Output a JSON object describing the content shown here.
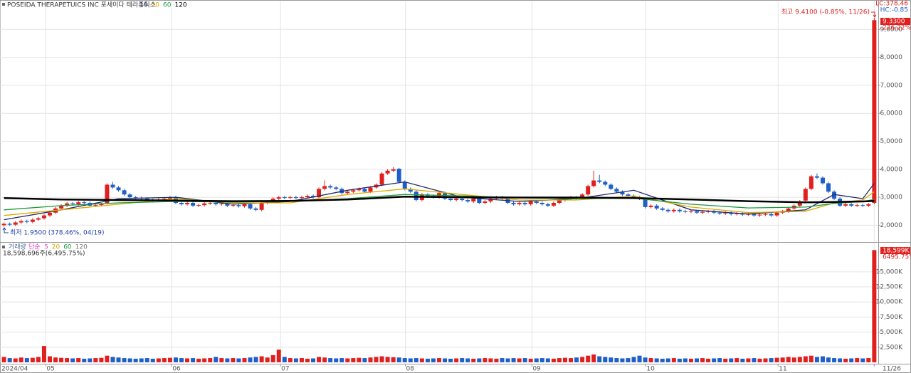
{
  "chart_data": [
    {
      "type": "candlestick",
      "title": "POSEIDA THERAPETUICS INC  포세이다 테라퓨틱스",
      "up_color": "#e0201f",
      "down_color": "#1f5fc8",
      "open": [
        2.0,
        2.05,
        2.02,
        2.1,
        2.15,
        2.12,
        2.2,
        2.25,
        2.35,
        2.45,
        2.6,
        2.7,
        2.78,
        2.75,
        2.82,
        2.8,
        2.7,
        2.72,
        2.8,
        3.45,
        3.35,
        3.25,
        3.1,
        3.0,
        2.98,
        2.95,
        2.9,
        2.88,
        2.92,
        2.95,
        3.0,
        2.8,
        2.75,
        2.8,
        2.7,
        2.72,
        2.78,
        2.8,
        2.75,
        2.78,
        2.7,
        2.72,
        2.68,
        2.75,
        2.6,
        2.55,
        2.8,
        2.85,
        2.95,
        3.0,
        2.98,
        3.0,
        2.98,
        3.0,
        3.05,
        3.0,
        3.3,
        3.4,
        3.35,
        3.3,
        3.15,
        3.2,
        3.25,
        3.3,
        3.2,
        3.35,
        3.45,
        3.85,
        3.95,
        4.02,
        3.55,
        3.3,
        3.2,
        2.9,
        3.1,
        3.05,
        3.0,
        3.15,
        2.95,
        2.9,
        2.95,
        2.9,
        2.85,
        2.95,
        2.8,
        2.85,
        2.95,
        3.0,
        2.95,
        2.8,
        2.75,
        2.8,
        2.75,
        2.85,
        2.8,
        2.75,
        2.7,
        2.8,
        2.9,
        2.95,
        3.0,
        2.95,
        3.1,
        3.4,
        3.6,
        3.55,
        3.45,
        3.3,
        3.2,
        3.1,
        3.05,
        3.0,
        2.95,
        2.65,
        2.7,
        2.6,
        2.55,
        2.5,
        2.55,
        2.5,
        2.48,
        2.5,
        2.45,
        2.48,
        2.5,
        2.45,
        2.42,
        2.45,
        2.4,
        2.42,
        2.38,
        2.4,
        2.35,
        2.38,
        2.4,
        2.35,
        2.45,
        2.5,
        2.6,
        2.7,
        2.88,
        3.3,
        3.75,
        3.7,
        3.5,
        3.2,
        2.95,
        2.7,
        2.75,
        2.7,
        2.72,
        2.7,
        2.8
      ],
      "high": [
        2.1,
        2.1,
        2.15,
        2.2,
        2.2,
        2.25,
        2.3,
        2.4,
        2.5,
        2.65,
        2.75,
        2.83,
        2.83,
        2.87,
        2.87,
        2.85,
        2.77,
        2.8,
        3.5,
        3.55,
        3.4,
        3.3,
        3.15,
        3.05,
        3.03,
        3.0,
        2.95,
        2.97,
        3.0,
        3.05,
        3.05,
        2.85,
        2.85,
        2.85,
        2.77,
        2.83,
        2.85,
        2.85,
        2.83,
        2.83,
        2.77,
        2.77,
        2.8,
        2.8,
        2.65,
        2.85,
        2.9,
        3.0,
        3.05,
        3.05,
        3.05,
        3.05,
        3.05,
        3.1,
        3.1,
        3.35,
        3.6,
        3.45,
        3.4,
        3.35,
        3.25,
        3.3,
        3.35,
        3.35,
        3.4,
        3.5,
        3.9,
        4.0,
        4.08,
        4.05,
        3.6,
        3.35,
        3.25,
        3.15,
        3.15,
        3.1,
        3.2,
        3.2,
        3.0,
        3.0,
        3.0,
        2.95,
        3.0,
        3.0,
        2.9,
        3.0,
        3.05,
        3.05,
        3.0,
        2.85,
        2.85,
        2.85,
        2.9,
        2.9,
        2.85,
        2.8,
        2.85,
        2.95,
        3.0,
        3.05,
        3.05,
        3.15,
        3.45,
        3.95,
        3.8,
        3.6,
        3.5,
        3.35,
        3.25,
        3.15,
        3.1,
        3.05,
        3.0,
        2.75,
        2.75,
        2.65,
        2.6,
        2.6,
        2.6,
        2.55,
        2.55,
        2.55,
        2.53,
        2.55,
        2.55,
        2.5,
        2.5,
        2.5,
        2.47,
        2.47,
        2.45,
        2.45,
        2.43,
        2.45,
        2.45,
        2.5,
        2.55,
        2.65,
        2.75,
        2.9,
        3.35,
        3.8,
        3.85,
        3.75,
        3.55,
        3.25,
        3.0,
        2.8,
        2.8,
        2.77,
        2.77,
        2.8,
        9.41
      ],
      "low": [
        1.95,
        1.97,
        1.97,
        2.05,
        2.07,
        2.07,
        2.15,
        2.2,
        2.3,
        2.4,
        2.55,
        2.65,
        2.7,
        2.7,
        2.75,
        2.65,
        2.65,
        2.67,
        2.75,
        3.3,
        3.2,
        3.05,
        2.95,
        2.93,
        2.9,
        2.85,
        2.83,
        2.83,
        2.87,
        2.9,
        2.75,
        2.7,
        2.7,
        2.65,
        2.65,
        2.67,
        2.73,
        2.7,
        2.7,
        2.65,
        2.65,
        2.63,
        2.63,
        2.55,
        2.5,
        2.5,
        2.75,
        2.8,
        2.9,
        2.93,
        2.93,
        2.93,
        2.93,
        2.95,
        2.95,
        2.95,
        3.25,
        3.3,
        3.25,
        3.1,
        3.1,
        3.15,
        3.2,
        3.15,
        3.15,
        3.3,
        3.4,
        3.8,
        3.9,
        3.5,
        3.25,
        3.15,
        2.85,
        2.85,
        3.0,
        2.95,
        2.95,
        2.9,
        2.85,
        2.85,
        2.85,
        2.8,
        2.8,
        2.75,
        2.75,
        2.8,
        2.9,
        2.9,
        2.75,
        2.7,
        2.7,
        2.7,
        2.7,
        2.75,
        2.7,
        2.65,
        2.65,
        2.75,
        2.85,
        2.9,
        2.9,
        2.9,
        3.05,
        3.35,
        3.5,
        3.4,
        3.25,
        3.15,
        3.05,
        3.0,
        2.95,
        2.9,
        2.6,
        2.6,
        2.55,
        2.5,
        2.45,
        2.45,
        2.45,
        2.43,
        2.43,
        2.4,
        2.4,
        2.43,
        2.4,
        2.37,
        2.37,
        2.35,
        2.35,
        2.33,
        2.33,
        2.3,
        2.3,
        2.33,
        2.3,
        2.3,
        2.4,
        2.45,
        2.55,
        2.65,
        2.83,
        3.25,
        3.65,
        3.45,
        3.15,
        2.9,
        2.65,
        2.65,
        2.65,
        2.65,
        2.65,
        2.65,
        2.75
      ],
      "close": [
        2.05,
        2.02,
        2.1,
        2.15,
        2.12,
        2.2,
        2.25,
        2.35,
        2.45,
        2.6,
        2.7,
        2.78,
        2.75,
        2.82,
        2.8,
        2.7,
        2.72,
        2.75,
        3.45,
        3.35,
        3.25,
        3.1,
        3.0,
        2.98,
        2.95,
        2.9,
        2.88,
        2.92,
        2.95,
        3.0,
        2.8,
        2.75,
        2.8,
        2.7,
        2.72,
        2.78,
        2.8,
        2.75,
        2.78,
        2.7,
        2.72,
        2.68,
        2.75,
        2.6,
        2.55,
        2.8,
        2.85,
        2.95,
        3.0,
        2.98,
        3.0,
        2.98,
        3.0,
        3.05,
        3.0,
        3.3,
        3.4,
        3.35,
        3.3,
        3.15,
        3.2,
        3.25,
        3.3,
        3.2,
        3.35,
        3.45,
        3.85,
        3.95,
        4.0,
        3.55,
        3.3,
        3.2,
        2.9,
        3.1,
        3.05,
        3.0,
        3.15,
        2.95,
        2.9,
        2.95,
        2.9,
        2.85,
        2.95,
        2.8,
        2.85,
        2.95,
        3.0,
        2.95,
        2.8,
        2.75,
        2.8,
        2.75,
        2.85,
        2.8,
        2.75,
        2.7,
        2.8,
        2.9,
        2.95,
        3.0,
        2.95,
        3.1,
        3.4,
        3.6,
        3.55,
        3.45,
        3.3,
        3.2,
        3.1,
        3.05,
        3.0,
        2.95,
        2.65,
        2.7,
        2.6,
        2.55,
        2.5,
        2.55,
        2.5,
        2.48,
        2.5,
        2.45,
        2.48,
        2.5,
        2.45,
        2.42,
        2.45,
        2.4,
        2.42,
        2.38,
        2.4,
        2.35,
        2.38,
        2.4,
        2.35,
        2.45,
        2.5,
        2.6,
        2.7,
        2.85,
        3.3,
        3.75,
        3.7,
        3.5,
        3.2,
        2.95,
        2.7,
        2.75,
        2.7,
        2.72,
        2.7,
        2.75,
        9.33
      ],
      "series": [
        {
          "name": "10",
          "color": "#1f2a6b",
          "x": [
            0,
            10,
            20,
            30,
            40,
            50,
            60,
            70,
            80,
            90,
            100,
            110,
            120,
            130,
            140,
            145,
            150,
            152
          ],
          "values": [
            2.2,
            2.55,
            2.95,
            3.0,
            2.75,
            2.85,
            3.25,
            3.55,
            3.0,
            2.85,
            2.95,
            3.25,
            2.55,
            2.4,
            2.55,
            3.1,
            2.95,
            3.5
          ]
        },
        {
          "name": "20",
          "color": "#e0a800",
          "x": [
            0,
            10,
            20,
            30,
            40,
            50,
            60,
            70,
            80,
            90,
            100,
            110,
            120,
            130,
            140,
            145,
            150,
            152
          ],
          "values": [
            2.35,
            2.55,
            2.75,
            2.95,
            2.8,
            2.8,
            3.1,
            3.3,
            3.1,
            2.9,
            2.9,
            3.05,
            2.65,
            2.45,
            2.5,
            2.8,
            2.9,
            3.2
          ]
        },
        {
          "name": "60",
          "color": "#1e9a3a",
          "x": [
            0,
            10,
            20,
            30,
            40,
            50,
            60,
            70,
            80,
            90,
            100,
            110,
            120,
            130,
            140,
            145,
            150,
            152
          ],
          "values": [
            2.55,
            2.7,
            2.8,
            2.85,
            2.83,
            2.85,
            2.95,
            3.1,
            3.05,
            2.98,
            2.95,
            2.97,
            2.75,
            2.62,
            2.65,
            2.78,
            2.85,
            2.92
          ]
        },
        {
          "name": "120",
          "color": "#000000",
          "x": [
            0,
            10,
            20,
            30,
            40,
            50,
            60,
            70,
            80,
            90,
            100,
            110,
            120,
            130,
            140,
            145,
            150,
            152
          ],
          "values": [
            2.97,
            2.92,
            2.9,
            2.88,
            2.86,
            2.87,
            2.92,
            3.02,
            3.0,
            2.99,
            2.99,
            2.97,
            2.92,
            2.86,
            2.82,
            2.83,
            2.85,
            2.87
          ]
        }
      ],
      "xlim": [
        -0.7,
        152.7
      ],
      "xticks": [
        {
          "value": -0.7,
          "label": "2024/04"
        },
        {
          "value": 7.3,
          "label": "05"
        },
        {
          "value": 29.3,
          "label": "06"
        },
        {
          "value": 48.3,
          "label": "07"
        },
        {
          "value": 70.1,
          "label": "08"
        },
        {
          "value": 92.2,
          "label": "09"
        },
        {
          "value": 112.1,
          "label": "10"
        },
        {
          "value": 135.2,
          "label": "11"
        },
        {
          "value": 152,
          "label": "11/26"
        }
      ],
      "ylim": [
        1.4,
        10.0
      ],
      "yticks": [
        {
          "value": 2,
          "label": "2,0000"
        },
        {
          "value": 3,
          "label": "3,0000"
        },
        {
          "value": 4,
          "label": "4,0000"
        },
        {
          "value": 5,
          "label": "5,0000"
        },
        {
          "value": 6,
          "label": "6,0000"
        },
        {
          "value": 7,
          "label": "7,0000"
        },
        {
          "value": 8,
          "label": "8,0000"
        },
        {
          "value": 9,
          "label": "9,0000"
        }
      ],
      "grid": true,
      "annotations": {
        "high": "최고 9.4100 (-0.85%, 11/26)",
        "low": "최저 1.9500 (378.46%, 04/19)",
        "lc": "LC:378.46",
        "hc": "HC:-0.85",
        "last_price": "9.3300",
        "last_change": "226.22%"
      }
    },
    {
      "type": "bar",
      "legend_title": "거래량",
      "method": "단순",
      "ma_names": [
        "5",
        "20",
        "60",
        "120"
      ],
      "ma_colors": [
        "#d63cc8",
        "#e0a800",
        "#1e9a3a",
        "#777777"
      ],
      "info": "18,598,696주(6,495.75%)",
      "values": [
        900,
        700,
        650,
        800,
        700,
        750,
        900,
        2700,
        1000,
        800,
        750,
        700,
        650,
        700,
        600,
        650,
        700,
        750,
        1100,
        900,
        800,
        700,
        650,
        600,
        650,
        700,
        600,
        650,
        700,
        750,
        800,
        700,
        650,
        700,
        600,
        650,
        700,
        900,
        700,
        650,
        700,
        650,
        700,
        800,
        900,
        1000,
        800,
        1200,
        2100,
        900,
        700,
        650,
        700,
        600,
        650,
        900,
        800,
        700,
        650,
        700,
        650,
        700,
        750,
        700,
        800,
        900,
        1000,
        900,
        850,
        800,
        700,
        650,
        700,
        650,
        600,
        650,
        700,
        650,
        600,
        650,
        700,
        650,
        600,
        650,
        700,
        650,
        600,
        700,
        650,
        700,
        650,
        700,
        600,
        650,
        700,
        650,
        600,
        700,
        750,
        700,
        800,
        900,
        1100,
        1300,
        1000,
        900,
        800,
        700,
        650,
        700,
        900,
        1100,
        800,
        700,
        650,
        600,
        650,
        700,
        600,
        650,
        600,
        650,
        700,
        600,
        650,
        700,
        600,
        650,
        700,
        600,
        650,
        700,
        600,
        650,
        700,
        750,
        800,
        900,
        800,
        900,
        1000,
        1100,
        900,
        1000,
        800,
        700,
        650,
        600,
        650,
        700,
        650,
        700,
        18598.696
      ],
      "xlim": [
        -0.7,
        152.7
      ],
      "ylim": [
        0,
        19700
      ],
      "yticks": [
        {
          "value": 2500,
          "label": "2,500K"
        },
        {
          "value": 5000,
          "label": "5,000K"
        },
        {
          "value": 7500,
          "label": "7,500K"
        },
        {
          "value": 10000,
          "label": "10,000K"
        },
        {
          "value": 12500,
          "label": "12,500K"
        },
        {
          "value": 15000,
          "label": "15,000K"
        }
      ],
      "last_label": "18,599K",
      "last_ratio": "6495.75%"
    }
  ]
}
